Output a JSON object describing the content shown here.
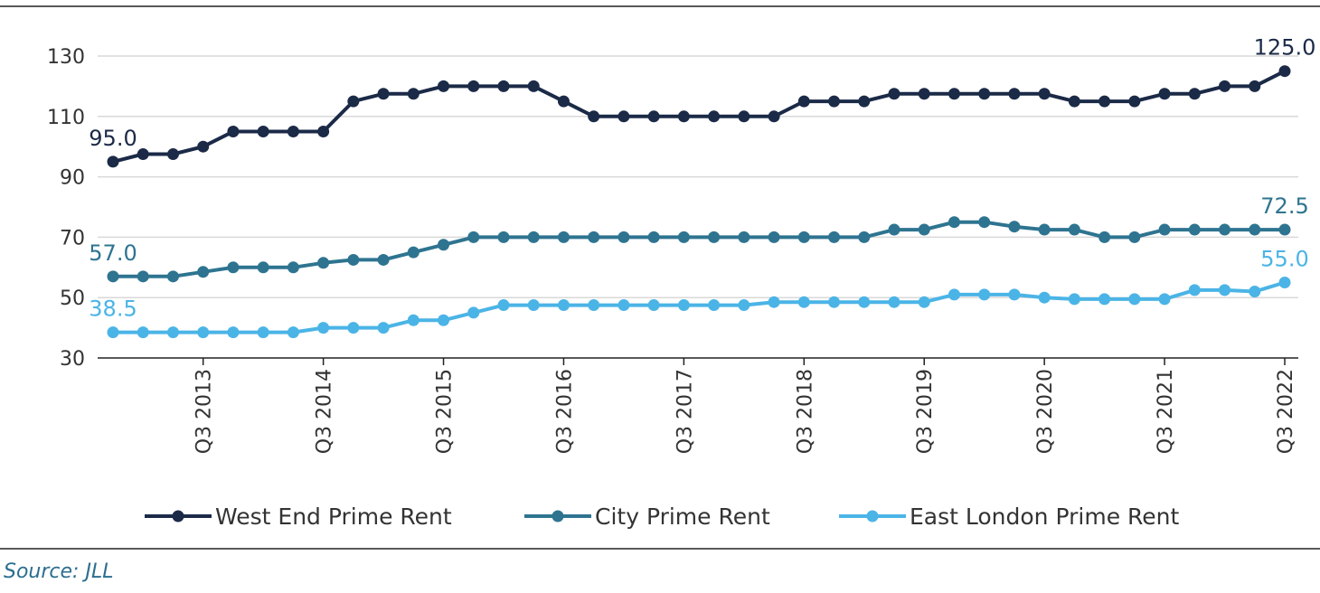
{
  "source": "Source: JLL",
  "chart_data": {
    "type": "line",
    "title": "",
    "xlabel": "",
    "ylabel": "",
    "ylim": [
      30,
      130
    ],
    "yticks": [
      30,
      50,
      70,
      90,
      110,
      130
    ],
    "grid": true,
    "legend_position": "bottom",
    "x_tick_labels": [
      "Q3 2013",
      "Q3 2014",
      "Q3 2015",
      "Q3 2016",
      "Q3 2017",
      "Q3 2018",
      "Q3 2019",
      "Q3 2020",
      "Q3 2021",
      "Q3 2022"
    ],
    "x_tick_indices": [
      3,
      7,
      11,
      15,
      19,
      23,
      27,
      31,
      35,
      39
    ],
    "x": [
      "Q4 2012",
      "Q1 2013",
      "Q2 2013",
      "Q3 2013",
      "Q4 2013",
      "Q1 2014",
      "Q2 2014",
      "Q3 2014",
      "Q4 2014",
      "Q1 2015",
      "Q2 2015",
      "Q3 2015",
      "Q4 2015",
      "Q1 2016",
      "Q2 2016",
      "Q3 2016",
      "Q4 2016",
      "Q1 2017",
      "Q2 2017",
      "Q3 2017",
      "Q4 2017",
      "Q1 2018",
      "Q2 2018",
      "Q3 2018",
      "Q4 2018",
      "Q1 2019",
      "Q2 2019",
      "Q3 2019",
      "Q4 2019",
      "Q1 2020",
      "Q2 2020",
      "Q3 2020",
      "Q4 2020",
      "Q1 2021",
      "Q2 2021",
      "Q3 2021",
      "Q4 2021",
      "Q1 2022",
      "Q2 2022",
      "Q3 2022"
    ],
    "series": [
      {
        "name": "West End Prime Rent",
        "color": "#1b2a47",
        "values": [
          95,
          97.5,
          97.5,
          100,
          105,
          105,
          105,
          105,
          115,
          117.5,
          117.5,
          120,
          120,
          120,
          120,
          115,
          110,
          110,
          110,
          110,
          110,
          110,
          110,
          115,
          115,
          115,
          117.5,
          117.5,
          117.5,
          117.5,
          117.5,
          117.5,
          115,
          115,
          115,
          117.5,
          117.5,
          120,
          120,
          125
        ],
        "labels": [
          {
            "index": 0,
            "text": "95.0"
          },
          {
            "index": 39,
            "text": "125.0"
          }
        ]
      },
      {
        "name": "City Prime Rent",
        "color": "#2e7490",
        "values": [
          57,
          57,
          57,
          58.5,
          60,
          60,
          60,
          61.5,
          62.5,
          62.5,
          65,
          67.5,
          70,
          70,
          70,
          70,
          70,
          70,
          70,
          70,
          70,
          70,
          70,
          70,
          70,
          70,
          72.5,
          72.5,
          75,
          75,
          73.5,
          72.5,
          72.5,
          70,
          70,
          72.5,
          72.5,
          72.5,
          72.5,
          72.5
        ],
        "labels": [
          {
            "index": 0,
            "text": "57.0"
          },
          {
            "index": 39,
            "text": "72.5"
          }
        ]
      },
      {
        "name": "East London Prime Rent",
        "color": "#4bb4e6",
        "values": [
          38.5,
          38.5,
          38.5,
          38.5,
          38.5,
          38.5,
          38.5,
          40,
          40,
          40,
          42.5,
          42.5,
          45,
          47.5,
          47.5,
          47.5,
          47.5,
          47.5,
          47.5,
          47.5,
          47.5,
          47.5,
          48.5,
          48.5,
          48.5,
          48.5,
          48.5,
          48.5,
          51,
          51,
          51,
          50,
          49.5,
          49.5,
          49.5,
          49.5,
          52.5,
          52.5,
          52,
          55
        ],
        "labels": [
          {
            "index": 0,
            "text": "38.5"
          },
          {
            "index": 39,
            "text": "55.0"
          }
        ]
      }
    ]
  }
}
